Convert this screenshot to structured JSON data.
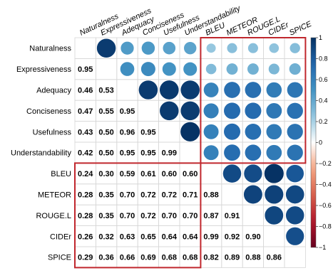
{
  "chart_data": {
    "type": "heatmap",
    "variables": [
      "Naturalness",
      "Expressiveness",
      "Adequacy",
      "Conciseness",
      "Usefulness",
      "Understandability",
      "BLEU",
      "METEOR",
      "ROUGE.L",
      "CIDEr",
      "SPICE"
    ],
    "matrix": [
      [
        1.0,
        0.95,
        0.46,
        0.47,
        0.43,
        0.42,
        0.24,
        0.28,
        0.28,
        0.26,
        0.29
      ],
      [
        0.95,
        1.0,
        0.53,
        0.55,
        0.5,
        0.5,
        0.3,
        0.35,
        0.35,
        0.32,
        0.36
      ],
      [
        0.46,
        0.53,
        1.0,
        0.95,
        0.96,
        0.95,
        0.59,
        0.7,
        0.7,
        0.63,
        0.66
      ],
      [
        0.47,
        0.55,
        0.95,
        1.0,
        0.95,
        0.95,
        0.61,
        0.72,
        0.72,
        0.65,
        0.69
      ],
      [
        0.43,
        0.5,
        0.96,
        0.95,
        1.0,
        0.99,
        0.6,
        0.72,
        0.7,
        0.64,
        0.68
      ],
      [
        0.42,
        0.5,
        0.95,
        0.95,
        0.99,
        1.0,
        0.6,
        0.71,
        0.7,
        0.64,
        0.68
      ],
      [
        0.24,
        0.3,
        0.59,
        0.61,
        0.6,
        0.6,
        1.0,
        0.88,
        0.87,
        0.99,
        0.82
      ],
      [
        0.28,
        0.35,
        0.7,
        0.72,
        0.72,
        0.71,
        0.88,
        1.0,
        0.91,
        0.92,
        0.89
      ],
      [
        0.28,
        0.35,
        0.7,
        0.72,
        0.7,
        0.7,
        0.87,
        0.91,
        1.0,
        0.9,
        0.88
      ],
      [
        0.26,
        0.32,
        0.63,
        0.65,
        0.64,
        0.64,
        0.99,
        0.92,
        0.9,
        1.0,
        0.86
      ],
      [
        0.29,
        0.36,
        0.66,
        0.69,
        0.68,
        0.68,
        0.82,
        0.89,
        0.88,
        0.86,
        1.0
      ]
    ],
    "upper_triangle": "circles",
    "lower_triangle": "numbers",
    "diagonal": "blank",
    "highlight_boxes": [
      "human vs automatic metrics (upper)",
      "automatic vs human metrics (lower)"
    ],
    "colorbar": {
      "range": [
        -1,
        1
      ],
      "ticks": [
        "1",
        "0.8",
        "0.6",
        "0.4",
        "0.2",
        "0",
        "−0.2",
        "−0.4",
        "−0.6",
        "−0.8",
        "−1"
      ]
    },
    "colors": {
      "negative_end": "#67001f",
      "neutral": "#ffffff",
      "positive_end": "#053061",
      "highlight_box": "#c0272d"
    },
    "title": "",
    "xlabel": "",
    "ylabel": ""
  }
}
